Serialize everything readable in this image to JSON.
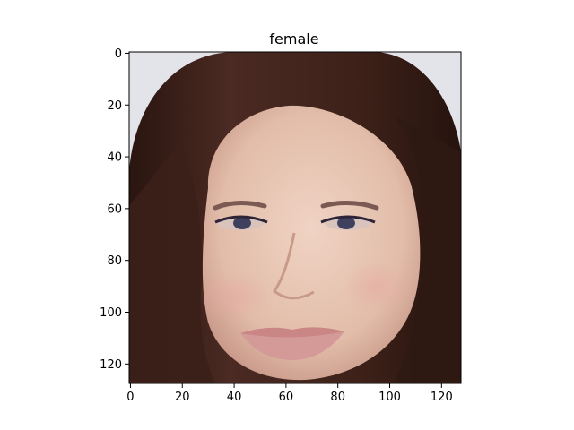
{
  "title": "female",
  "image": {
    "description_tag": "face-portrait",
    "background_color": "#e3e3ea",
    "hair_color": "#3a2019",
    "skin_color": "#e6c4b2",
    "lip_color": "#d49a98",
    "eye_color": "#3f3f5e"
  },
  "axes": {
    "x_range": [
      0,
      127
    ],
    "y_range": [
      0,
      127
    ],
    "x_ticks": [
      {
        "value": 0,
        "label": "0"
      },
      {
        "value": 20,
        "label": "20"
      },
      {
        "value": 40,
        "label": "40"
      },
      {
        "value": 60,
        "label": "60"
      },
      {
        "value": 80,
        "label": "80"
      },
      {
        "value": 100,
        "label": "100"
      },
      {
        "value": 120,
        "label": "120"
      }
    ],
    "y_ticks": [
      {
        "value": 0,
        "label": "0"
      },
      {
        "value": 20,
        "label": "20"
      },
      {
        "value": 40,
        "label": "40"
      },
      {
        "value": 60,
        "label": "60"
      },
      {
        "value": 80,
        "label": "80"
      },
      {
        "value": 100,
        "label": "100"
      },
      {
        "value": 120,
        "label": "120"
      }
    ]
  }
}
